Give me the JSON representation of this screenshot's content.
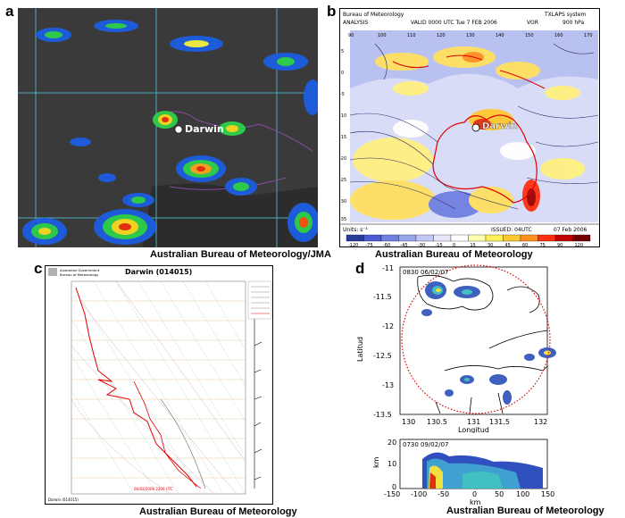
{
  "panel_a": {
    "label": "a",
    "place": "Darwin",
    "credit": "Australian Bureau of Meteorology/JMA"
  },
  "panel_b": {
    "label": "b",
    "org": "Bureau of Meteorology",
    "system": "TXLAPS system",
    "analysis": "ANALYSIS",
    "valid": "VALID 0000 UTC  Tue 7 FEB 2006",
    "var": "VOR",
    "level": "900 hPa",
    "place": "Darwin",
    "units": "Units: s⁻¹",
    "issued": "ISSUED: 04UTC",
    "issued_date": "07 Feb 2006",
    "lon_ticks": [
      "90",
      "100",
      "110",
      "120",
      "130",
      "140",
      "150",
      "160",
      "170"
    ],
    "lat_ticks": [
      "5",
      "0",
      "-5",
      "-10",
      "-15",
      "-20",
      "-25",
      "-30",
      "-35"
    ],
    "scale": [
      "-120",
      "-75",
      "-60",
      "-45",
      "-30",
      "-15",
      "0",
      "15",
      "30",
      "45",
      "60",
      "75",
      "90",
      "120"
    ],
    "scale_colors": [
      "#2a3a9a",
      "#4a5ad0",
      "#7080e0",
      "#9aa6ec",
      "#c2c8f4",
      "#e6e8fa",
      "#ffffff",
      "#ffffb0",
      "#fff05a",
      "#ffc830",
      "#ff9020",
      "#ff3010",
      "#c00000",
      "#700000"
    ],
    "credit": "Australian Bureau of Meteorology"
  },
  "panel_c": {
    "label": "c",
    "org_line1": "Australian Government",
    "org_line2": "Bureau of Meteorology",
    "title": "Darwin (014015)",
    "footer_left": "Darwin (014015)",
    "footer_center": "06/02/2006 2300 UTC",
    "credit": "Australian Bureau of Meteorology"
  },
  "panel_d": {
    "label": "d",
    "top_tag": "0830 06/02/07",
    "bottom_tag": "0730 09/02/07",
    "y_label": "Latitud",
    "x_label": "Longitud",
    "y_ticks": [
      "-11",
      "-11.5",
      "-12",
      "-12.5",
      "-13",
      "-13.5"
    ],
    "x_ticks": [
      "130",
      "130.5",
      "131",
      "131.5",
      "132"
    ],
    "bottom_y_label": "km",
    "bottom_y_ticks": [
      "20",
      "10",
      "0"
    ],
    "bottom_x_ticks": [
      "-150",
      "-100",
      "-50",
      "0",
      "50",
      "100",
      "150"
    ],
    "bottom_x_label": "km",
    "credit": "Australian Bureau of Meteorology"
  }
}
